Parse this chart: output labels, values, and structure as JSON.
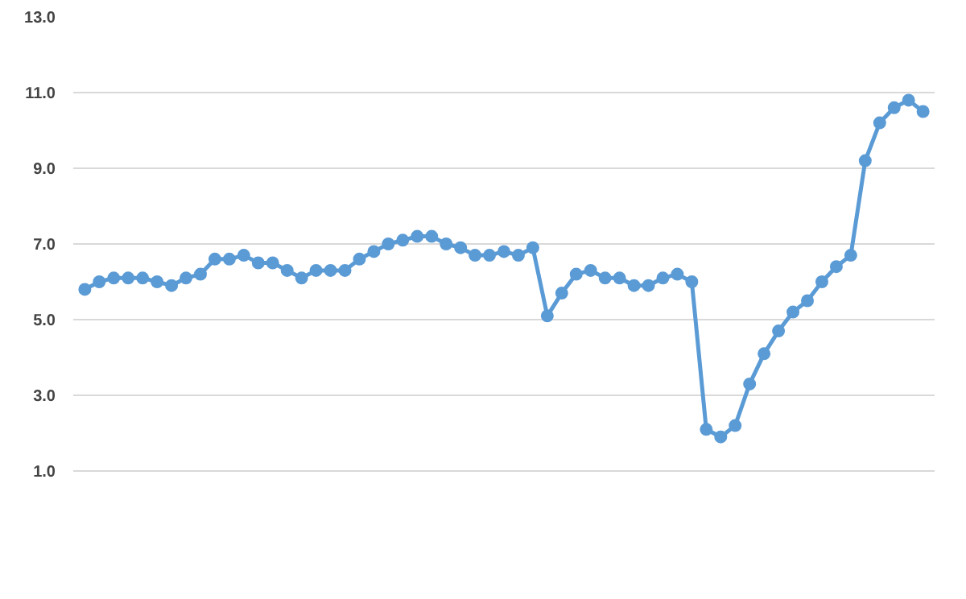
{
  "chart_data": {
    "type": "line",
    "categories": [
      null,
      null,
      null,
      null,
      null,
      null,
      null,
      null,
      null,
      null,
      null,
      null,
      null,
      null,
      null,
      null,
      null,
      null,
      null,
      null,
      null,
      null,
      null,
      null,
      null,
      null,
      null,
      null,
      null,
      null,
      null,
      null,
      null,
      null,
      null,
      null,
      null,
      null,
      null,
      null,
      null,
      null,
      null,
      null,
      null,
      null,
      null,
      null,
      null,
      null,
      null,
      null,
      null,
      null,
      null,
      null,
      null,
      null,
      null
    ],
    "series": [
      {
        "color": "#5b9bd5",
        "values": [
          5.8,
          6.0,
          6.1,
          6.1,
          6.1,
          6.0,
          5.9,
          6.1,
          6.2,
          6.6,
          6.6,
          6.7,
          6.5,
          6.5,
          6.3,
          6.1,
          6.3,
          6.3,
          6.3,
          6.6,
          6.8,
          7.0,
          7.1,
          7.2,
          7.2,
          7.0,
          6.9,
          6.7,
          6.7,
          6.8,
          6.7,
          6.9,
          5.1,
          5.7,
          6.2,
          6.3,
          6.1,
          6.1,
          5.9,
          5.9,
          6.1,
          6.2,
          6.0,
          2.1,
          1.9,
          2.2,
          3.3,
          4.1,
          4.7,
          5.2,
          5.5,
          6.0,
          6.4,
          6.7,
          9.2,
          10.2,
          10.6,
          10.8,
          10.5
        ]
      }
    ],
    "ylim": [
      1.0,
      13.0
    ],
    "yticks": [
      {
        "value": 1,
        "label": "1.0"
      },
      {
        "value": 3,
        "label": "3.0"
      },
      {
        "value": 5,
        "label": "5.0"
      },
      {
        "value": 7,
        "label": "7.0"
      },
      {
        "value": 9,
        "label": "9.0"
      },
      {
        "value": 11,
        "label": "11.0"
      },
      {
        "value": 13,
        "label": "13.0"
      }
    ],
    "grid": "y",
    "marker": "circle",
    "line_style": "solid"
  }
}
